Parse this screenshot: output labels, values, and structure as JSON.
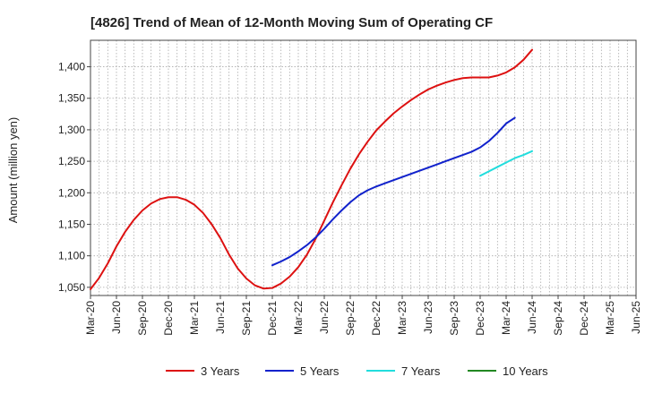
{
  "chart_data": {
    "type": "line",
    "title": "[4826]  Trend of Mean of 12-Month Moving Sum of Operating CF",
    "xlabel": "",
    "ylabel": "Amount (million yen)",
    "ylim": [
      1037,
      1442
    ],
    "yticks": [
      1050,
      1100,
      1150,
      1200,
      1250,
      1300,
      1350,
      1400
    ],
    "ytick_labels": [
      "1,050",
      "1,100",
      "1,150",
      "1,200",
      "1,250",
      "1,300",
      "1,350",
      "1,400"
    ],
    "x_labels": [
      "Mar-20",
      "Jun-20",
      "Sep-20",
      "Dec-20",
      "Mar-21",
      "Jun-21",
      "Sep-21",
      "Dec-21",
      "Mar-22",
      "Jun-22",
      "Sep-22",
      "Dec-22",
      "Mar-23",
      "Jun-23",
      "Sep-23",
      "Dec-23",
      "Mar-24",
      "Jun-24",
      "Sep-24",
      "Dec-24",
      "Mar-25",
      "Jun-25"
    ],
    "grid": true,
    "legend_position": "bottom",
    "series": [
      {
        "name": "3 Years",
        "color": "#dd1111",
        "start_index": 0,
        "values": [
          1047,
          1065,
          1088,
          1115,
          1138,
          1157,
          1172,
          1183,
          1190,
          1193,
          1193,
          1189,
          1181,
          1168,
          1150,
          1128,
          1102,
          1080,
          1064,
          1053,
          1048,
          1049,
          1056,
          1067,
          1082,
          1102,
          1127,
          1156,
          1185,
          1212,
          1238,
          1261,
          1281,
          1299,
          1313,
          1326,
          1337,
          1347,
          1356,
          1364,
          1370,
          1375,
          1379,
          1382,
          1383,
          1383,
          1383,
          1386,
          1391,
          1399,
          1411,
          1427
        ]
      },
      {
        "name": "5 Years",
        "color": "#1122cc",
        "start_index": 21,
        "values": [
          1085,
          1091,
          1098,
          1107,
          1117,
          1129,
          1143,
          1158,
          1172,
          1185,
          1196,
          1204,
          1210,
          1215,
          1220,
          1225,
          1230,
          1235,
          1240,
          1245,
          1250,
          1255,
          1260,
          1265,
          1272,
          1282,
          1295,
          1310,
          1319
        ]
      },
      {
        "name": "7 Years",
        "color": "#22dddd",
        "start_index": 45,
        "values": [
          1227,
          1234,
          1241,
          1248,
          1255,
          1260,
          1266
        ]
      },
      {
        "name": "10 Years",
        "color": "#228822",
        "start_index": 0,
        "values": []
      }
    ]
  }
}
